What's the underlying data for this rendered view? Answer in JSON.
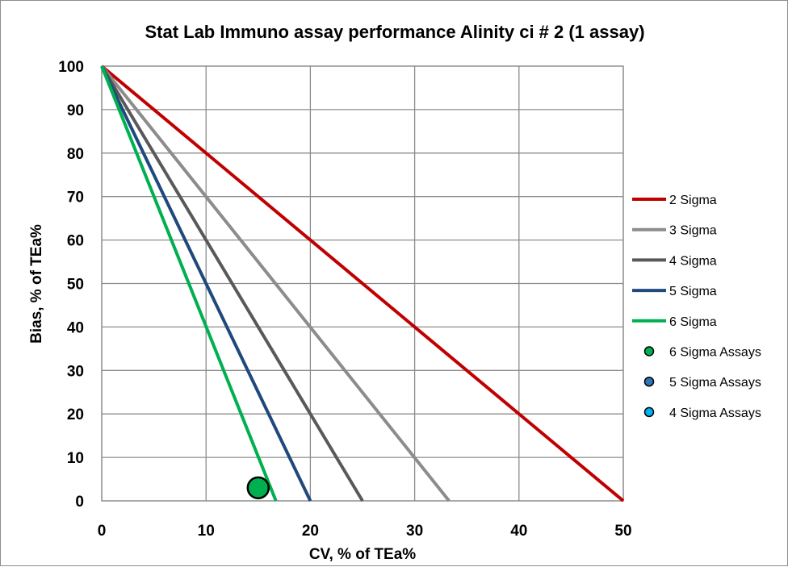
{
  "chart_data": {
    "type": "line",
    "title": "Stat Lab Immuno assay performance Alinity ci # 2 (1 assay)",
    "xlabel": "CV, % of TEa%",
    "ylabel": "Bias, % of TEa%",
    "xlim": [
      0,
      50
    ],
    "ylim": [
      0,
      100
    ],
    "xticks": [
      0,
      10,
      20,
      30,
      40,
      50
    ],
    "yticks": [
      0,
      10,
      20,
      30,
      40,
      50,
      60,
      70,
      80,
      90,
      100
    ],
    "grid": true,
    "legend_position": "right",
    "series": [
      {
        "name": "2 Sigma",
        "kind": "line",
        "color": "#c00000",
        "points": [
          [
            0,
            100
          ],
          [
            50,
            0
          ]
        ]
      },
      {
        "name": "3 Sigma",
        "kind": "line",
        "color": "#8c8c8c",
        "points": [
          [
            0,
            100
          ],
          [
            33.3,
            0
          ]
        ]
      },
      {
        "name": "4 Sigma",
        "kind": "line",
        "color": "#595959",
        "points": [
          [
            0,
            100
          ],
          [
            25,
            0
          ]
        ]
      },
      {
        "name": "5 Sigma",
        "kind": "line",
        "color": "#1f497d",
        "points": [
          [
            0,
            100
          ],
          [
            20,
            0
          ]
        ]
      },
      {
        "name": "6 Sigma",
        "kind": "line",
        "color": "#00b050",
        "points": [
          [
            0,
            100
          ],
          [
            16.7,
            0
          ]
        ]
      },
      {
        "name": "6 Sigma Assays",
        "kind": "scatter",
        "color": "#00b050",
        "points": [
          [
            15,
            3
          ]
        ]
      },
      {
        "name": "5 Sigma Assays",
        "kind": "scatter",
        "color": "#2e75b6",
        "points": []
      },
      {
        "name": "4 Sigma Assays",
        "kind": "scatter",
        "color": "#00b0f0",
        "points": []
      }
    ]
  }
}
